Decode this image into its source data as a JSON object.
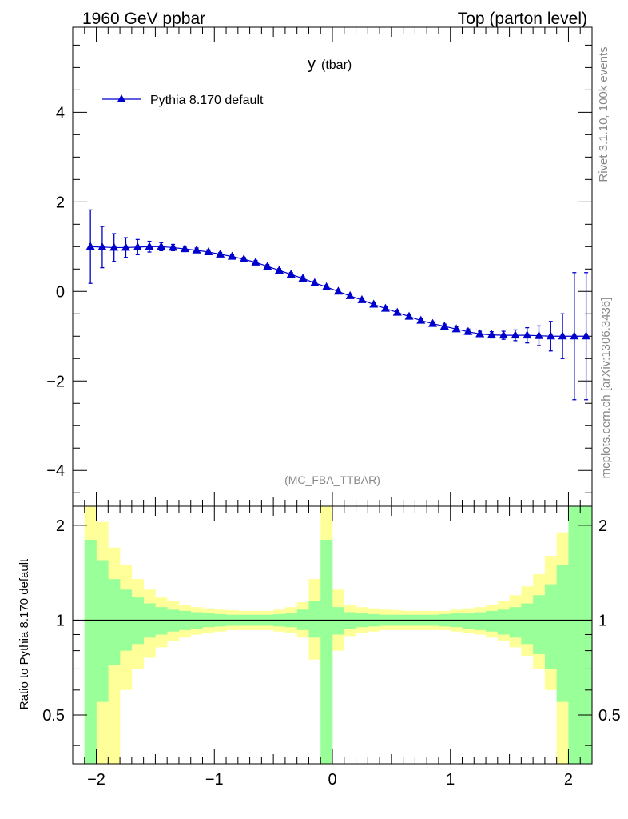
{
  "header": {
    "left": "1960 GeV ppbar",
    "right": "Top (parton level)"
  },
  "side_labels": {
    "rivet": "Rivet 3.1.10,  100k events",
    "mcplots": "mcplots.cern.ch [arXiv:1306.3436]"
  },
  "colors": {
    "series": "#0000cc",
    "band_outer": "#ffff99",
    "band_inner": "#99ff99",
    "grey_text": "#888888"
  },
  "chart_data": [
    {
      "type": "line",
      "title": "y",
      "title_sub": "(tbar)",
      "analysis_label": "(MC_FBA_TTBAR)",
      "xlim": [
        -2.2,
        2.2
      ],
      "ylim": [
        -4.8,
        5.9
      ],
      "y_ticks": [
        -4,
        -2,
        0,
        2,
        4
      ],
      "y_tick_labels": [
        "−4",
        "−2",
        "0",
        "2",
        "4"
      ],
      "legend_position": "top-left",
      "series": [
        {
          "name": "Pythia 8.170 default",
          "x": [
            -2.05,
            -1.95,
            -1.85,
            -1.75,
            -1.65,
            -1.55,
            -1.45,
            -1.35,
            -1.25,
            -1.15,
            -1.05,
            -0.95,
            -0.85,
            -0.75,
            -0.65,
            -0.55,
            -0.45,
            -0.35,
            -0.25,
            -0.15,
            -0.05,
            0.05,
            0.15,
            0.25,
            0.35,
            0.45,
            0.55,
            0.65,
            0.75,
            0.85,
            0.95,
            1.05,
            1.15,
            1.25,
            1.35,
            1.45,
            1.55,
            1.65,
            1.75,
            1.85,
            1.95,
            2.05,
            2.15
          ],
          "y": [
            1.0,
            0.99,
            0.98,
            0.98,
            0.99,
            1.0,
            1.0,
            0.98,
            0.95,
            0.92,
            0.88,
            0.83,
            0.78,
            0.72,
            0.65,
            0.56,
            0.47,
            0.38,
            0.29,
            0.19,
            0.1,
            0.0,
            -0.1,
            -0.19,
            -0.29,
            -0.38,
            -0.47,
            -0.56,
            -0.65,
            -0.72,
            -0.78,
            -0.84,
            -0.9,
            -0.95,
            -0.97,
            -0.98,
            -0.98,
            -0.98,
            -0.99,
            -1.0,
            -1.0,
            -1.0,
            -1.0
          ],
          "yerr": [
            0.82,
            0.46,
            0.31,
            0.22,
            0.17,
            0.12,
            0.09,
            0.07,
            0.06,
            0.05,
            0.05,
            0.04,
            0.04,
            0.04,
            0.04,
            0.04,
            0.04,
            0.04,
            0.04,
            0.04,
            0.04,
            0.04,
            0.04,
            0.04,
            0.04,
            0.04,
            0.04,
            0.04,
            0.04,
            0.04,
            0.05,
            0.05,
            0.06,
            0.06,
            0.07,
            0.09,
            0.12,
            0.17,
            0.22,
            0.33,
            0.5,
            1.42,
            1.42
          ]
        }
      ]
    },
    {
      "type": "area",
      "ylabel": "Ratio to Pythia 8.170 default",
      "xlim": [
        -2.2,
        2.2
      ],
      "ylim": [
        0.35,
        2.3
      ],
      "y_scale": "log",
      "x_ticks": [
        -2,
        -1,
        0,
        1,
        2
      ],
      "x_tick_labels": [
        "−2",
        "−1",
        "0",
        "1",
        "2"
      ],
      "y_ticks": [
        0.5,
        1,
        2
      ],
      "y_tick_labels": [
        "0.5",
        "1",
        "2"
      ],
      "reference_line": 1,
      "bins": {
        "edges": [
          -2.1,
          -2.0,
          -1.9,
          -1.8,
          -1.7,
          -1.6,
          -1.5,
          -1.4,
          -1.3,
          -1.2,
          -1.1,
          -1.0,
          -0.9,
          -0.8,
          -0.7,
          -0.6,
          -0.5,
          -0.4,
          -0.3,
          -0.2,
          -0.1,
          0.0,
          0.1,
          0.2,
          0.3,
          0.4,
          0.5,
          0.6,
          0.7,
          0.8,
          0.9,
          1.0,
          1.1,
          1.2,
          1.3,
          1.4,
          1.5,
          1.6,
          1.7,
          1.8,
          1.9,
          2.0,
          2.1,
          2.2
        ],
        "outer_up": [
          2.3,
          2.05,
          1.7,
          1.5,
          1.35,
          1.25,
          1.18,
          1.15,
          1.12,
          1.1,
          1.09,
          1.08,
          1.075,
          1.07,
          1.07,
          1.07,
          1.08,
          1.1,
          1.14,
          1.35,
          2.3,
          1.25,
          1.12,
          1.1,
          1.09,
          1.08,
          1.075,
          1.07,
          1.07,
          1.07,
          1.07,
          1.08,
          1.09,
          1.1,
          1.12,
          1.15,
          1.2,
          1.28,
          1.4,
          1.6,
          1.9,
          2.3,
          2.3
        ],
        "outer_dn": [
          0.3,
          0.3,
          0.3,
          0.6,
          0.7,
          0.76,
          0.82,
          0.86,
          0.88,
          0.9,
          0.91,
          0.92,
          0.93,
          0.93,
          0.93,
          0.93,
          0.92,
          0.91,
          0.88,
          0.75,
          0.5,
          0.8,
          0.89,
          0.91,
          0.92,
          0.93,
          0.93,
          0.93,
          0.93,
          0.93,
          0.93,
          0.92,
          0.91,
          0.9,
          0.88,
          0.86,
          0.82,
          0.77,
          0.7,
          0.6,
          0.3,
          0.3,
          0.3
        ],
        "inner_up": [
          1.8,
          1.55,
          1.35,
          1.25,
          1.18,
          1.13,
          1.1,
          1.08,
          1.07,
          1.06,
          1.05,
          1.045,
          1.04,
          1.04,
          1.04,
          1.04,
          1.045,
          1.05,
          1.08,
          1.15,
          1.8,
          1.1,
          1.06,
          1.05,
          1.045,
          1.04,
          1.04,
          1.04,
          1.04,
          1.04,
          1.045,
          1.05,
          1.05,
          1.06,
          1.07,
          1.08,
          1.1,
          1.13,
          1.2,
          1.3,
          1.5,
          2.3,
          2.3
        ],
        "inner_dn": [
          0.3,
          0.55,
          0.72,
          0.8,
          0.84,
          0.88,
          0.9,
          0.92,
          0.93,
          0.94,
          0.95,
          0.955,
          0.96,
          0.96,
          0.96,
          0.96,
          0.955,
          0.95,
          0.93,
          0.88,
          0.3,
          0.9,
          0.94,
          0.95,
          0.955,
          0.96,
          0.96,
          0.96,
          0.96,
          0.96,
          0.955,
          0.95,
          0.94,
          0.93,
          0.92,
          0.9,
          0.88,
          0.84,
          0.78,
          0.7,
          0.55,
          0.3,
          0.3
        ]
      }
    }
  ]
}
